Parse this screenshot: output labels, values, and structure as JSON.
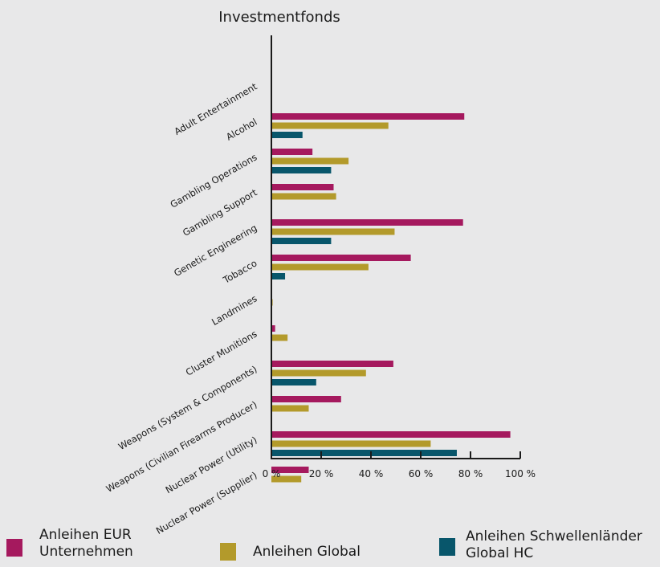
{
  "chart_data": {
    "type": "bar",
    "orientation": "horizontal",
    "title": "Investmentfonds",
    "categories": [
      "Adult Entertainment",
      "Alcohol",
      "Gambling Operations",
      "Gambling Support",
      "Genetic Engineering",
      "Tobacco",
      "Landmines",
      "Cluster Munitions",
      "Weapons (System & Components)",
      "Weapons (Civilian Firearms Producer)",
      "Nuclear Power (Utility)",
      "Nuclear Power (Supplier)"
    ],
    "series": [
      {
        "name": "Anleihen EUR Unternehmen",
        "color": "#a5195e",
        "values": [
          0,
          77.5,
          16.5,
          25,
          77,
          56,
          0,
          1.5,
          49,
          28,
          96,
          15
        ]
      },
      {
        "name": "Anleihen Global",
        "color": "#b39a2b",
        "values": [
          0,
          47,
          31,
          26,
          49.5,
          39,
          0.5,
          6.5,
          38,
          15,
          64,
          12
        ]
      },
      {
        "name": "Anleihen Schwellenländer Global HC",
        "color": "#08566b",
        "values": [
          0,
          12.5,
          24,
          0,
          24,
          5.5,
          0,
          0,
          18,
          0,
          74.5,
          0
        ]
      }
    ],
    "xlim": [
      0,
      100
    ],
    "ticks": [
      0,
      20,
      40,
      60,
      80,
      100
    ],
    "tick_labels": [
      "0 %",
      "20 %",
      "40 %",
      "60 %",
      "80 %",
      "100 %"
    ],
    "grid": false,
    "legend_position": "bottom"
  },
  "legend": {
    "items": [
      {
        "label_lines": [
          "Anleihen EUR",
          "Unternehmen"
        ],
        "color": "#a5195e"
      },
      {
        "label_lines": [
          "Anleihen Global"
        ],
        "color": "#b39a2b"
      },
      {
        "label_lines": [
          "Anleihen Schwellenländer",
          "Global HC"
        ],
        "color": "#08566b"
      }
    ]
  }
}
